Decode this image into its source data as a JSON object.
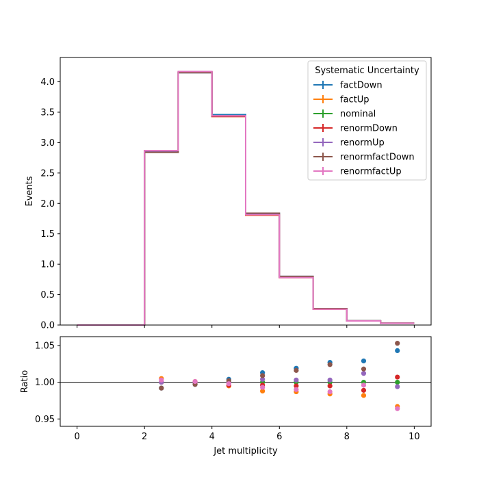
{
  "chart_data": [
    {
      "type": "line",
      "style": "step histogram",
      "ylabel": "Events",
      "xlim": [
        -0.5,
        10.5
      ],
      "ylim": [
        0,
        4.4
      ],
      "xticks": [
        0,
        2,
        4,
        6,
        8,
        10
      ],
      "yticks": [
        "0.0",
        "0.5",
        "1.0",
        "1.5",
        "2.0",
        "2.5",
        "3.0",
        "3.5",
        "4.0"
      ],
      "bin_edges": [
        0,
        1,
        2,
        3,
        4,
        5,
        6,
        7,
        8,
        9,
        10
      ],
      "legend": {
        "title": "Systematic Uncertainty",
        "position": "top-right"
      },
      "series": [
        {
          "name": "factDown",
          "color": "#1f77b4",
          "values": [
            0,
            0,
            2.84,
            4.15,
            3.46,
            1.84,
            0.8,
            0.27,
            0.071,
            0.031
          ]
        },
        {
          "name": "factUp",
          "color": "#ff7f0e",
          "values": [
            0,
            0,
            2.87,
            4.16,
            3.43,
            1.8,
            0.78,
            0.26,
            0.067,
            0.029
          ]
        },
        {
          "name": "nominal",
          "color": "#2ca02c",
          "values": [
            0,
            0,
            2.86,
            4.16,
            3.44,
            1.82,
            0.79,
            0.264,
            0.069,
            0.03
          ]
        },
        {
          "name": "renormDown",
          "color": "#d62728",
          "values": [
            0,
            0,
            2.86,
            4.16,
            3.43,
            1.81,
            0.785,
            0.263,
            0.068,
            0.0302
          ]
        },
        {
          "name": "renormUp",
          "color": "#9467bd",
          "values": [
            0,
            0,
            2.86,
            4.16,
            3.44,
            1.82,
            0.792,
            0.265,
            0.069,
            0.0298
          ]
        },
        {
          "name": "renormfactDown",
          "color": "#8c564b",
          "values": [
            0,
            0,
            2.84,
            4.15,
            3.44,
            1.84,
            0.8,
            0.27,
            0.07,
            0.0315
          ]
        },
        {
          "name": "renormfactUp",
          "color": "#e377c2",
          "values": [
            0,
            0,
            2.87,
            4.17,
            3.44,
            1.81,
            0.78,
            0.26,
            0.068,
            0.029
          ]
        }
      ]
    },
    {
      "type": "scatter",
      "xlabel": "Jet multiplicity",
      "ylabel": "Ratio",
      "xlim": [
        -0.5,
        10.5
      ],
      "ylim": [
        0.94,
        1.062
      ],
      "xticks": [
        "0",
        "2",
        "4",
        "6",
        "8",
        "10"
      ],
      "yticks": [
        "0.95",
        "1.00",
        "1.05"
      ],
      "reference_line": 1.0,
      "x": [
        2.5,
        3.5,
        4.5,
        5.5,
        6.5,
        7.5,
        8.5,
        9.5
      ],
      "series": [
        {
          "name": "factDown",
          "color": "#1f77b4",
          "values": [
            0.992,
            0.997,
            1.004,
            1.013,
            1.019,
            1.027,
            1.029,
            1.043
          ]
        },
        {
          "name": "factUp",
          "color": "#ff7f0e",
          "values": [
            1.005,
            1.001,
            0.995,
            0.988,
            0.987,
            0.984,
            0.982,
            0.967
          ]
        },
        {
          "name": "nominal",
          "color": "#2ca02c",
          "values": [
            1.0,
            1.0,
            1.0,
            1.0,
            1.0,
            1.0,
            1.0,
            1.0
          ]
        },
        {
          "name": "renormDown",
          "color": "#d62728",
          "values": [
            1.0,
            1.0,
            0.996,
            0.996,
            0.995,
            0.995,
            0.989,
            1.007
          ]
        },
        {
          "name": "renormUp",
          "color": "#9467bd",
          "values": [
            1.0,
            1.0,
            1.0,
            1.004,
            1.003,
            1.003,
            1.012,
            0.994
          ]
        },
        {
          "name": "renormfactDown",
          "color": "#8c564b",
          "values": [
            0.992,
            0.997,
            1.002,
            1.009,
            1.016,
            1.024,
            1.018,
            1.053
          ]
        },
        {
          "name": "renormfactUp",
          "color": "#e377c2",
          "values": [
            1.003,
            1.001,
            0.998,
            0.993,
            0.99,
            0.987,
            0.996,
            0.964
          ]
        }
      ]
    }
  ]
}
